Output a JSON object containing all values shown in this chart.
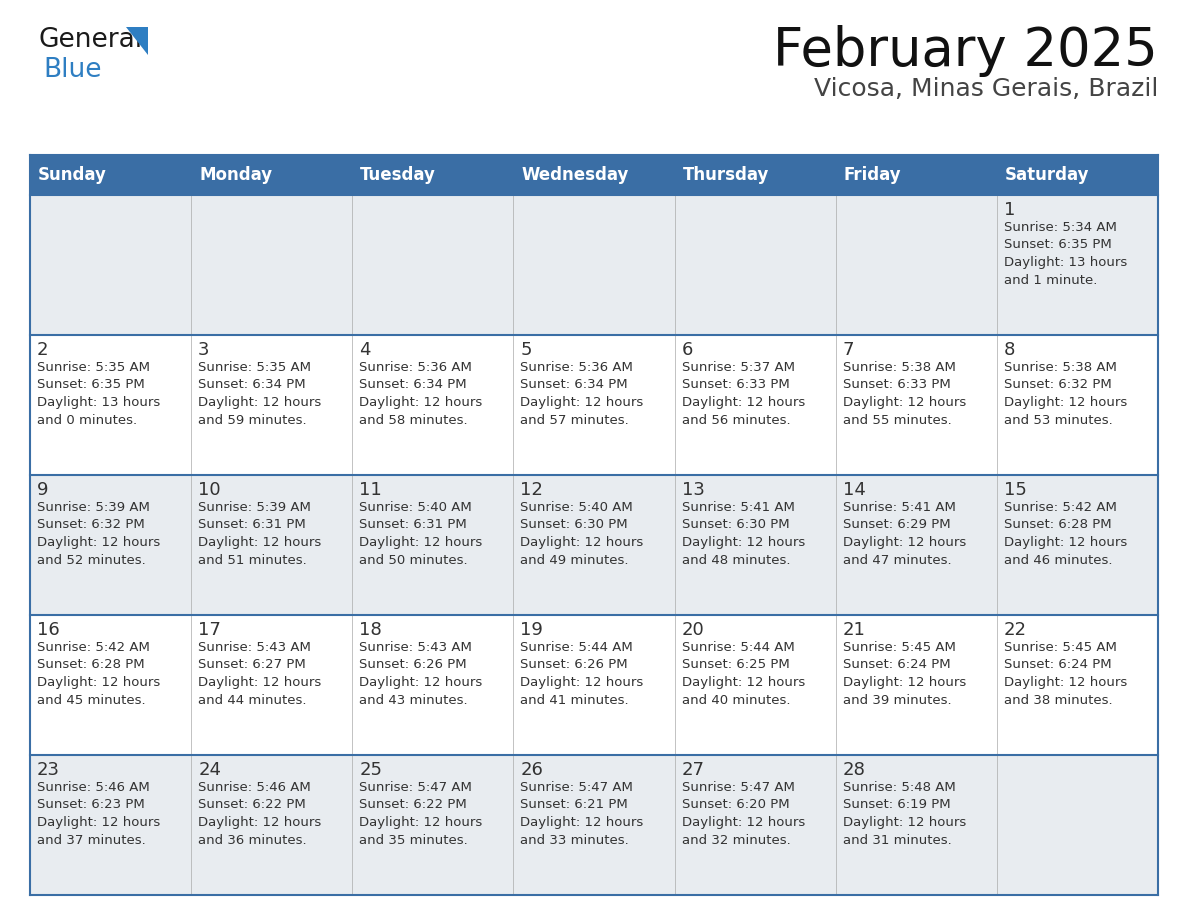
{
  "title": "February 2025",
  "subtitle": "Vicosa, Minas Gerais, Brazil",
  "days_of_week": [
    "Sunday",
    "Monday",
    "Tuesday",
    "Wednesday",
    "Thursday",
    "Friday",
    "Saturday"
  ],
  "header_bg": "#3a6ea5",
  "header_text": "#ffffff",
  "row_bg_light": "#e8ecf0",
  "row_bg_white": "#ffffff",
  "border_color": "#3a6ea5",
  "text_color": "#333333",
  "day_number_color": "#333333",
  "calendar_data": [
    [
      null,
      null,
      null,
      null,
      null,
      null,
      {
        "day": 1,
        "sunrise": "5:34 AM",
        "sunset": "6:35 PM",
        "daylight": "13 hours\nand 1 minute."
      }
    ],
    [
      {
        "day": 2,
        "sunrise": "5:35 AM",
        "sunset": "6:35 PM",
        "daylight": "13 hours\nand 0 minutes."
      },
      {
        "day": 3,
        "sunrise": "5:35 AM",
        "sunset": "6:34 PM",
        "daylight": "12 hours\nand 59 minutes."
      },
      {
        "day": 4,
        "sunrise": "5:36 AM",
        "sunset": "6:34 PM",
        "daylight": "12 hours\nand 58 minutes."
      },
      {
        "day": 5,
        "sunrise": "5:36 AM",
        "sunset": "6:34 PM",
        "daylight": "12 hours\nand 57 minutes."
      },
      {
        "day": 6,
        "sunrise": "5:37 AM",
        "sunset": "6:33 PM",
        "daylight": "12 hours\nand 56 minutes."
      },
      {
        "day": 7,
        "sunrise": "5:38 AM",
        "sunset": "6:33 PM",
        "daylight": "12 hours\nand 55 minutes."
      },
      {
        "day": 8,
        "sunrise": "5:38 AM",
        "sunset": "6:32 PM",
        "daylight": "12 hours\nand 53 minutes."
      }
    ],
    [
      {
        "day": 9,
        "sunrise": "5:39 AM",
        "sunset": "6:32 PM",
        "daylight": "12 hours\nand 52 minutes."
      },
      {
        "day": 10,
        "sunrise": "5:39 AM",
        "sunset": "6:31 PM",
        "daylight": "12 hours\nand 51 minutes."
      },
      {
        "day": 11,
        "sunrise": "5:40 AM",
        "sunset": "6:31 PM",
        "daylight": "12 hours\nand 50 minutes."
      },
      {
        "day": 12,
        "sunrise": "5:40 AM",
        "sunset": "6:30 PM",
        "daylight": "12 hours\nand 49 minutes."
      },
      {
        "day": 13,
        "sunrise": "5:41 AM",
        "sunset": "6:30 PM",
        "daylight": "12 hours\nand 48 minutes."
      },
      {
        "day": 14,
        "sunrise": "5:41 AM",
        "sunset": "6:29 PM",
        "daylight": "12 hours\nand 47 minutes."
      },
      {
        "day": 15,
        "sunrise": "5:42 AM",
        "sunset": "6:28 PM",
        "daylight": "12 hours\nand 46 minutes."
      }
    ],
    [
      {
        "day": 16,
        "sunrise": "5:42 AM",
        "sunset": "6:28 PM",
        "daylight": "12 hours\nand 45 minutes."
      },
      {
        "day": 17,
        "sunrise": "5:43 AM",
        "sunset": "6:27 PM",
        "daylight": "12 hours\nand 44 minutes."
      },
      {
        "day": 18,
        "sunrise": "5:43 AM",
        "sunset": "6:26 PM",
        "daylight": "12 hours\nand 43 minutes."
      },
      {
        "day": 19,
        "sunrise": "5:44 AM",
        "sunset": "6:26 PM",
        "daylight": "12 hours\nand 41 minutes."
      },
      {
        "day": 20,
        "sunrise": "5:44 AM",
        "sunset": "6:25 PM",
        "daylight": "12 hours\nand 40 minutes."
      },
      {
        "day": 21,
        "sunrise": "5:45 AM",
        "sunset": "6:24 PM",
        "daylight": "12 hours\nand 39 minutes."
      },
      {
        "day": 22,
        "sunrise": "5:45 AM",
        "sunset": "6:24 PM",
        "daylight": "12 hours\nand 38 minutes."
      }
    ],
    [
      {
        "day": 23,
        "sunrise": "5:46 AM",
        "sunset": "6:23 PM",
        "daylight": "12 hours\nand 37 minutes."
      },
      {
        "day": 24,
        "sunrise": "5:46 AM",
        "sunset": "6:22 PM",
        "daylight": "12 hours\nand 36 minutes."
      },
      {
        "day": 25,
        "sunrise": "5:47 AM",
        "sunset": "6:22 PM",
        "daylight": "12 hours\nand 35 minutes."
      },
      {
        "day": 26,
        "sunrise": "5:47 AM",
        "sunset": "6:21 PM",
        "daylight": "12 hours\nand 33 minutes."
      },
      {
        "day": 27,
        "sunrise": "5:47 AM",
        "sunset": "6:20 PM",
        "daylight": "12 hours\nand 32 minutes."
      },
      {
        "day": 28,
        "sunrise": "5:48 AM",
        "sunset": "6:19 PM",
        "daylight": "12 hours\nand 31 minutes."
      },
      null
    ]
  ],
  "logo_general_color": "#1a1a1a",
  "logo_blue_color": "#2e7ec2",
  "logo_triangle_color": "#2e7ec2"
}
